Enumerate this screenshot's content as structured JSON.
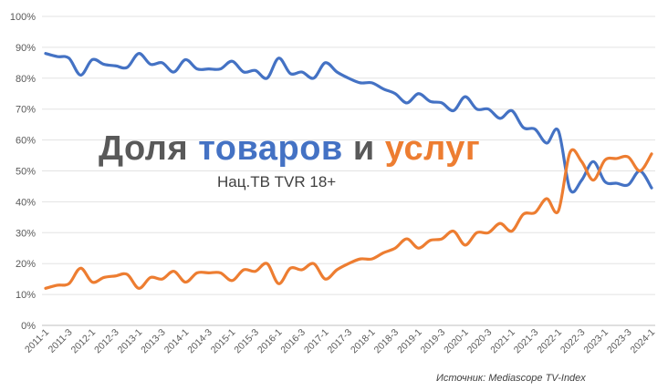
{
  "chart_data": {
    "type": "line",
    "title_parts": [
      "Доля",
      "товаров",
      "и",
      "услуг"
    ],
    "subtitle": "Нац.ТВ TVR 18+",
    "source": "Источник: Mediascope TV-Index",
    "xlabel": "",
    "ylabel": "",
    "ylim": [
      0,
      100
    ],
    "y_ticks": [
      "0%",
      "10%",
      "20%",
      "30%",
      "40%",
      "50%",
      "60%",
      "70%",
      "80%",
      "90%",
      "100%"
    ],
    "x_tick_labels": [
      "2011-1",
      "2011-3",
      "2012-1",
      "2012-3",
      "2013-1",
      "2013-3",
      "2014-1",
      "2014-3",
      "2015-1",
      "2015-3",
      "2016-1",
      "2016-3",
      "2017-1",
      "2017-3",
      "2018-1",
      "2018-3",
      "2019-1",
      "2019-3",
      "2020-1",
      "2020-3",
      "2021-1",
      "2021-3",
      "2022-1",
      "2022-3",
      "2023-1",
      "2023-3",
      "2024-1"
    ],
    "grid": true,
    "legend": "none",
    "series": [
      {
        "color": "#4472C4",
        "values": [
          88,
          87,
          86.5,
          81,
          86,
          84.5,
          84,
          83.5,
          88,
          84.5,
          85,
          82,
          86,
          83,
          83,
          83,
          85.5,
          82,
          82.5,
          80,
          86.5,
          81.5,
          82,
          80,
          85,
          82,
          80,
          78.5,
          78.5,
          76.5,
          75,
          72,
          75,
          72.5,
          72,
          69.5,
          74,
          70,
          70,
          67,
          69.5,
          64,
          63.5,
          59,
          63,
          44,
          47,
          53,
          46.5,
          46,
          45.5,
          50,
          44.5
        ]
      },
      {
        "color": "#ED7D31",
        "values": [
          12,
          13,
          13.5,
          18.5,
          14,
          15.5,
          16,
          16.5,
          12,
          15.5,
          15,
          17.5,
          14,
          17,
          17,
          17,
          14.5,
          18,
          17.5,
          20,
          13.5,
          18.5,
          18,
          20,
          15,
          18,
          20,
          21.5,
          21.5,
          23.5,
          25,
          28,
          25,
          27.5,
          28,
          30.5,
          26,
          30,
          30,
          33,
          30.5,
          36,
          36.5,
          41,
          37,
          56,
          53,
          47,
          53.5,
          54,
          54.5,
          50,
          55.5
        ]
      }
    ]
  }
}
